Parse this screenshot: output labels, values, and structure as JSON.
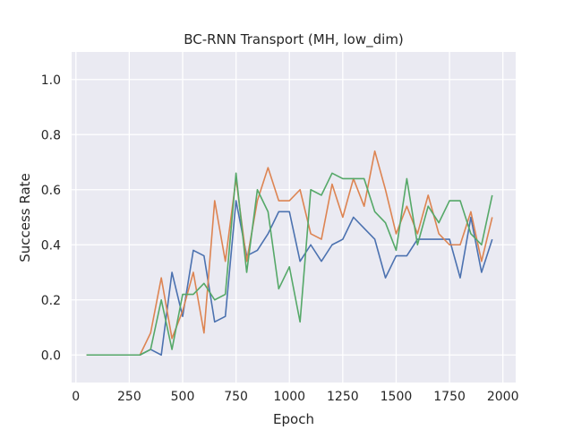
{
  "chart_data": {
    "type": "line",
    "title": "BC-RNN Transport (MH, low_dim)",
    "xlabel": "Epoch",
    "ylabel": "Success Rate",
    "xlim": [
      -20,
      2060
    ],
    "ylim": [
      -0.1,
      1.1
    ],
    "xticks": [
      0,
      250,
      500,
      750,
      1000,
      1250,
      1500,
      1750,
      2000
    ],
    "yticks": [
      0.0,
      0.2,
      0.4,
      0.6,
      0.8,
      1.0
    ],
    "xtick_labels": [
      "0",
      "250",
      "500",
      "750",
      "1000",
      "1250",
      "1500",
      "1750",
      "2000"
    ],
    "ytick_labels": [
      "0.0",
      "0.2",
      "0.4",
      "0.6",
      "0.8",
      "1.0"
    ],
    "grid": true,
    "background": "#eaeaf2",
    "x": [
      50,
      100,
      150,
      200,
      250,
      300,
      350,
      400,
      450,
      500,
      550,
      600,
      650,
      700,
      750,
      800,
      850,
      900,
      950,
      1000,
      1050,
      1100,
      1150,
      1200,
      1250,
      1300,
      1350,
      1400,
      1450,
      1500,
      1550,
      1600,
      1650,
      1700,
      1750,
      1800,
      1850,
      1900,
      1950
    ],
    "series": [
      {
        "color": "#4c72b0",
        "values": [
          0,
          0,
          0,
          0,
          0,
          0,
          0.02,
          0,
          0.3,
          0.14,
          0.38,
          0.36,
          0.12,
          0.14,
          0.56,
          0.36,
          0.38,
          0.44,
          0.52,
          0.52,
          0.34,
          0.4,
          0.34,
          0.4,
          0.42,
          0.5,
          0.46,
          0.42,
          0.28,
          0.36,
          0.36,
          0.42,
          0.42,
          0.42,
          0.42,
          0.28,
          0.5,
          0.3,
          0.42
        ]
      },
      {
        "color": "#dd8452",
        "values": [
          0,
          0,
          0,
          0,
          0,
          0,
          0.08,
          0.28,
          0.06,
          0.16,
          0.3,
          0.08,
          0.56,
          0.34,
          0.64,
          0.34,
          0.56,
          0.68,
          0.56,
          0.56,
          0.6,
          0.44,
          0.42,
          0.62,
          0.5,
          0.64,
          0.54,
          0.74,
          0.6,
          0.44,
          0.54,
          0.44,
          0.58,
          0.44,
          0.4,
          0.4,
          0.52,
          0.34,
          0.5
        ]
      },
      {
        "color": "#55a868",
        "values": [
          0,
          0,
          0,
          0,
          0,
          0,
          0.02,
          0.2,
          0.02,
          0.22,
          0.22,
          0.26,
          0.2,
          0.22,
          0.66,
          0.3,
          0.6,
          0.52,
          0.24,
          0.32,
          0.12,
          0.6,
          0.58,
          0.66,
          0.64,
          0.64,
          0.64,
          0.52,
          0.48,
          0.38,
          0.64,
          0.4,
          0.54,
          0.48,
          0.56,
          0.56,
          0.44,
          0.4,
          0.58
        ]
      }
    ]
  }
}
